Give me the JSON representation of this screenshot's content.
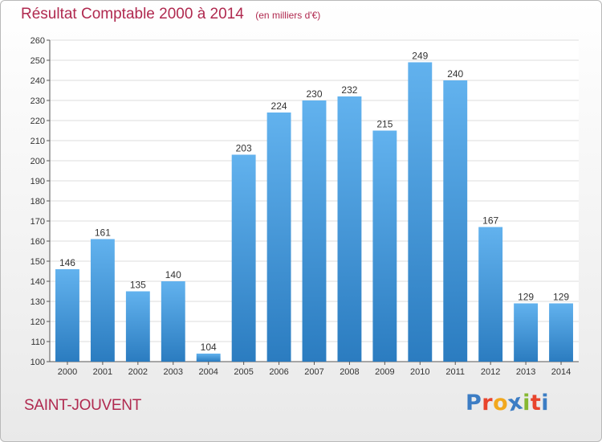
{
  "header": {
    "title": "Résultat Comptable 2000 à 2014",
    "subtitle": "(en milliers d'€)"
  },
  "town_name": "SAINT-JOUVENT",
  "logo": {
    "text": "Proxiti",
    "letters": [
      {
        "ch": "P",
        "color": "#3c7dc4"
      },
      {
        "ch": "r",
        "color": "#e8442c"
      },
      {
        "ch": "o",
        "color": "#f2a81d"
      },
      {
        "ch": "x",
        "color": "#3c7dc4"
      },
      {
        "ch": "i",
        "color": "#86b832"
      },
      {
        "ch": "t",
        "color": "#e8442c"
      },
      {
        "ch": "i",
        "color": "#3c7dc4"
      }
    ]
  },
  "colors": {
    "title": "#b0294f",
    "bar_top": "#62b2ee",
    "bar_bottom": "#2b7cc0",
    "grid": "#dddddd",
    "axis": "#555555"
  },
  "chart_data": {
    "type": "bar",
    "categories": [
      "2000",
      "2001",
      "2002",
      "2003",
      "2004",
      "2005",
      "2006",
      "2007",
      "2008",
      "2009",
      "2010",
      "2011",
      "2012",
      "2013",
      "2014"
    ],
    "values": [
      146,
      161,
      135,
      140,
      104,
      203,
      224,
      230,
      232,
      215,
      249,
      240,
      167,
      129,
      129
    ],
    "title": "Résultat Comptable 2000 à 2014",
    "subtitle": "(en milliers d'€)",
    "ylim": [
      100,
      260
    ],
    "yticks": [
      100,
      110,
      120,
      130,
      140,
      150,
      160,
      170,
      180,
      190,
      200,
      210,
      220,
      230,
      240,
      250,
      260
    ],
    "grid": true,
    "data_labels": true
  }
}
